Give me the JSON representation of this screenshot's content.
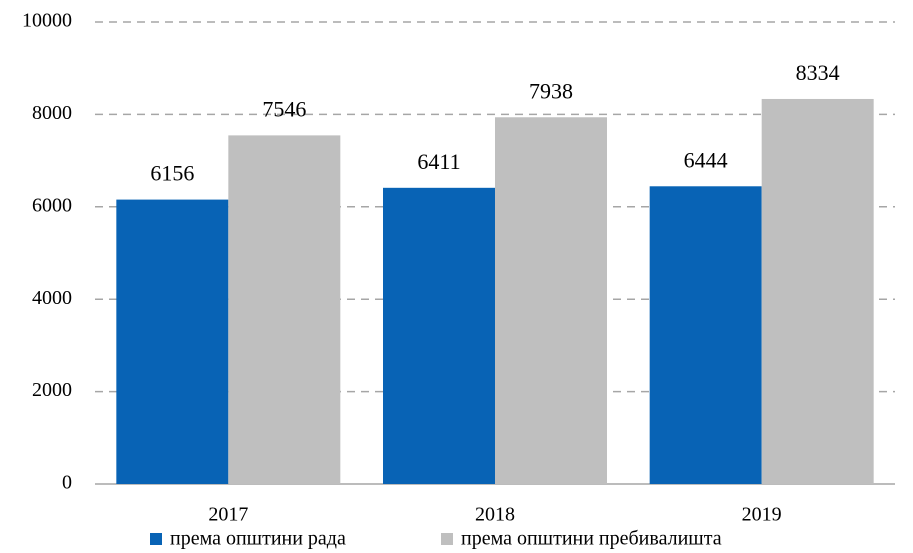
{
  "chart_data": {
    "type": "bar",
    "categories": [
      "2017",
      "2018",
      "2019"
    ],
    "series": [
      {
        "name": "према општини рада",
        "color": "#0863b5",
        "values": [
          6156,
          6411,
          6444
        ]
      },
      {
        "name": "према општини пребивалишта",
        "color": "#bfbfbf",
        "values": [
          7546,
          7938,
          8334
        ]
      }
    ],
    "ylim": [
      0,
      10000
    ],
    "yticks": [
      0,
      2000,
      4000,
      6000,
      8000,
      10000
    ],
    "grid": true,
    "legend": "bottom"
  }
}
